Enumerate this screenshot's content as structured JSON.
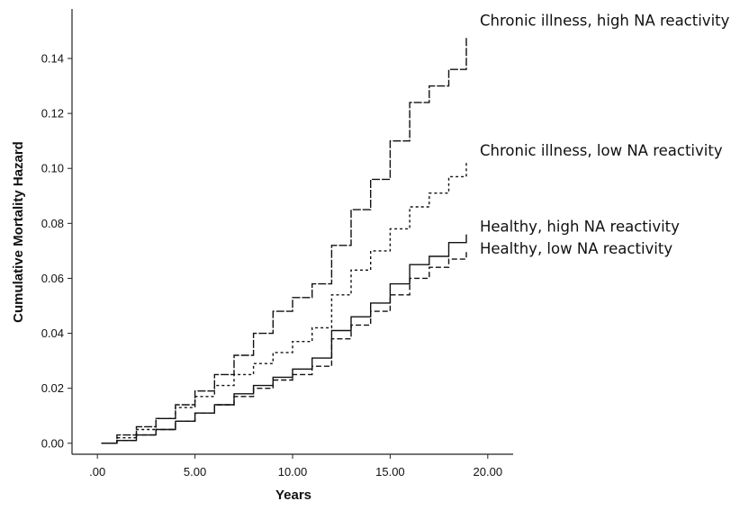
{
  "chart_data": {
    "type": "line",
    "title": "",
    "xlabel": "Years",
    "ylabel": "Cumulative Mortality Hazard",
    "xlim": [
      -1.3,
      21.3
    ],
    "ylim": [
      -0.004,
      0.158
    ],
    "x_ticks": [
      0,
      5,
      10,
      15,
      20
    ],
    "x_tick_labels": [
      ".00",
      "5.00",
      "10.00",
      "15.00",
      "20.00"
    ],
    "y_ticks": [
      0,
      0.02,
      0.04,
      0.06,
      0.08,
      0.1,
      0.12,
      0.14
    ],
    "y_tick_labels": [
      "0.00",
      "0.02",
      "0.04",
      "0.06",
      "0.08",
      "0.10",
      "0.12",
      "0.14"
    ],
    "grid": false,
    "legend": "none; series labelled at right end of lines",
    "series": [
      {
        "name": "Chronic illness, high NA reactivity",
        "style": "long-dash",
        "x": [
          0.2,
          1,
          2,
          3,
          4,
          5,
          6,
          7,
          8,
          9,
          10,
          11,
          12,
          13,
          14,
          15,
          16,
          17,
          18,
          18.9
        ],
        "y": [
          0.0,
          0.003,
          0.006,
          0.009,
          0.014,
          0.019,
          0.025,
          0.032,
          0.04,
          0.048,
          0.053,
          0.058,
          0.072,
          0.085,
          0.096,
          0.11,
          0.124,
          0.13,
          0.136,
          0.148
        ]
      },
      {
        "name": "Chronic illness, low NA reactivity",
        "style": "dotted",
        "x": [
          0.2,
          1,
          2,
          3,
          4,
          5,
          6,
          7,
          8,
          9,
          10,
          11,
          12,
          13,
          14,
          15,
          16,
          17,
          18,
          18.9
        ],
        "y": [
          0.0,
          0.002,
          0.005,
          0.009,
          0.013,
          0.017,
          0.021,
          0.025,
          0.029,
          0.033,
          0.037,
          0.042,
          0.054,
          0.063,
          0.07,
          0.078,
          0.086,
          0.091,
          0.097,
          0.102
        ]
      },
      {
        "name": "Healthy, high NA reactivity",
        "style": "solid",
        "x": [
          0.2,
          1,
          2,
          3,
          4,
          5,
          6,
          7,
          8,
          9,
          10,
          11,
          12,
          13,
          14,
          15,
          16,
          17,
          18,
          18.9
        ],
        "y": [
          0.0,
          0.001,
          0.003,
          0.005,
          0.008,
          0.011,
          0.014,
          0.018,
          0.021,
          0.024,
          0.027,
          0.031,
          0.041,
          0.046,
          0.051,
          0.058,
          0.065,
          0.068,
          0.073,
          0.076
        ]
      },
      {
        "name": "Healthy, low NA reactivity",
        "style": "short-dash",
        "x": [
          0.2,
          1,
          2,
          3,
          4,
          5,
          6,
          7,
          8,
          9,
          10,
          11,
          12,
          13,
          14,
          15,
          16,
          17,
          18,
          18.9
        ],
        "y": [
          0.0,
          0.001,
          0.003,
          0.005,
          0.008,
          0.011,
          0.014,
          0.017,
          0.02,
          0.023,
          0.025,
          0.028,
          0.038,
          0.043,
          0.048,
          0.054,
          0.06,
          0.064,
          0.067,
          0.07
        ]
      }
    ]
  }
}
